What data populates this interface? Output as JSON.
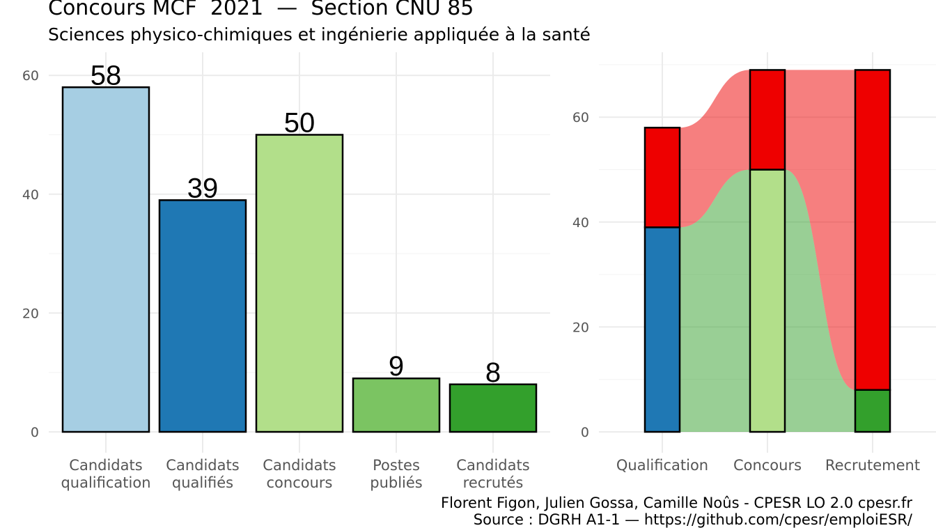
{
  "title": "Concours MCF  2021  —  Section CNU 85",
  "subtitle": "Sciences physico-chimiques et ingénierie appliquée à la santé",
  "caption_line1": "Florent Figon, Julien Gossa, Camille Noûs - CPESR LO 2.0 cpesr.fr",
  "caption_line2": "Source : DGRH A1-1 — https://github.com/cpesr/emploiESR/",
  "chart_data": [
    {
      "type": "bar",
      "categories": [
        [
          "Candidats",
          "qualification"
        ],
        [
          "Candidats",
          "qualifiés"
        ],
        [
          "Candidats",
          "concours"
        ],
        [
          "Postes",
          "publiés"
        ],
        [
          "Candidats",
          "recrutés"
        ]
      ],
      "values": [
        58,
        39,
        50,
        9,
        8
      ],
      "colors": [
        "#a6cee3",
        "#1f78b4",
        "#b2df8a",
        "#7bc462",
        "#33a02c"
      ],
      "ylim": [
        0,
        64
      ],
      "yticks": [
        0,
        20,
        40,
        60
      ],
      "grid": true
    },
    {
      "type": "bar",
      "stacked": true,
      "categories": [
        "Qualification",
        "Concours",
        "Recrutement"
      ],
      "segments": [
        [
          {
            "value": 39,
            "color": "#1f78b4"
          },
          {
            "value": 19,
            "color": "#ee0000"
          }
        ],
        [
          {
            "value": 50,
            "color": "#b2df8a"
          },
          {
            "value": 19,
            "color": "#ee0000"
          }
        ],
        [
          {
            "value": 8,
            "color": "#33a02c"
          },
          {
            "value": 61,
            "color": "#ee0000"
          }
        ]
      ],
      "flows": [
        {
          "color": "#ee0000",
          "opacity": 0.5
        },
        {
          "color": "#33a02c",
          "opacity": 0.5
        }
      ],
      "ylim": [
        0,
        72
      ],
      "yticks": [
        0,
        20,
        40,
        60
      ],
      "grid": true
    }
  ]
}
